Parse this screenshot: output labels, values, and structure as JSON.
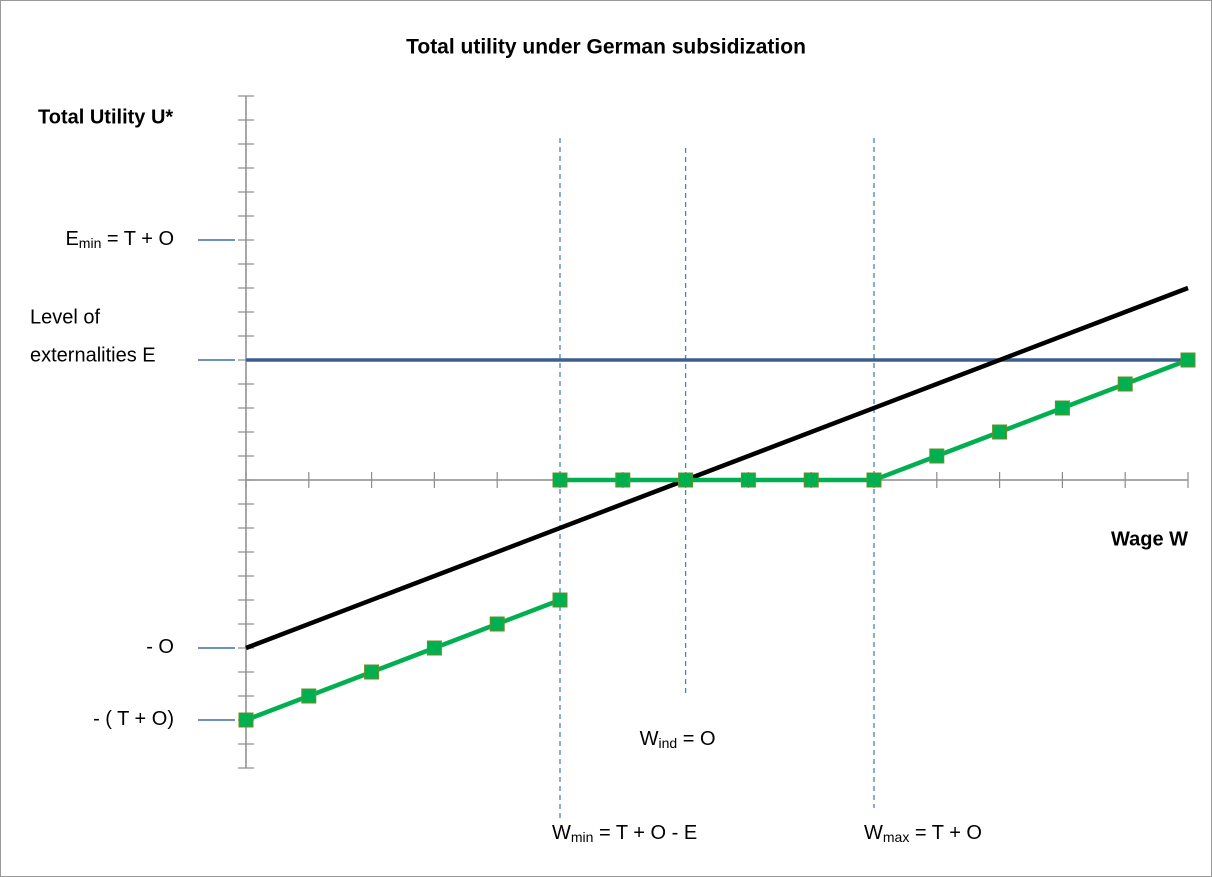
{
  "chart_data": {
    "type": "line",
    "title": "Total utility under German subsidization",
    "y_label": "Total Utility U*",
    "x_label": "Wage W",
    "xlim": [
      0,
      15
    ],
    "ylim": [
      -12,
      16
    ],
    "xminorticks": [
      0,
      1,
      2,
      3,
      4,
      5,
      6,
      7,
      8,
      9,
      10,
      11,
      12,
      13,
      14,
      15
    ],
    "yminorticks": [
      -12,
      -11,
      -10,
      -9,
      -8,
      -7,
      -6,
      -5,
      -4,
      -3,
      -2,
      -1,
      0,
      1,
      2,
      3,
      4,
      5,
      6,
      7,
      8,
      9,
      10,
      11,
      12,
      13,
      14,
      15,
      16
    ],
    "yticks": [
      {
        "value": 10,
        "label": [
          "E",
          "min",
          " = T + O"
        ]
      },
      {
        "value": 5,
        "label": [
          "Level of",
          "externalities E"
        ]
      },
      {
        "value": -7,
        "label": [
          "- O"
        ]
      },
      {
        "value": -10,
        "label": [
          "- ( T + O)"
        ]
      }
    ],
    "vlines": [
      {
        "x": 5,
        "label": [
          "W",
          "min",
          " = T + O - E"
        ]
      },
      {
        "x": 7,
        "label": [
          "W",
          "ind",
          " = O"
        ]
      },
      {
        "x": 10,
        "label": [
          "W",
          "max",
          " = T + O"
        ]
      }
    ],
    "series": [
      {
        "color": "#3d5f8f",
        "x": [
          0,
          15
        ],
        "values": [
          5,
          5
        ]
      },
      {
        "color": "#000000",
        "x": [
          0,
          15
        ],
        "values": [
          -7,
          8
        ]
      },
      {
        "color": "#00b050",
        "markers": true,
        "x": [
          0,
          1,
          2,
          3,
          4,
          5,
          null,
          5,
          6,
          7,
          8,
          9,
          10,
          11,
          12,
          13,
          14,
          15
        ],
        "values": [
          -10,
          -9,
          -8,
          -7,
          -6,
          -5,
          null,
          0,
          0,
          0,
          0,
          0,
          0,
          1,
          2,
          3,
          4,
          5
        ]
      }
    ]
  }
}
